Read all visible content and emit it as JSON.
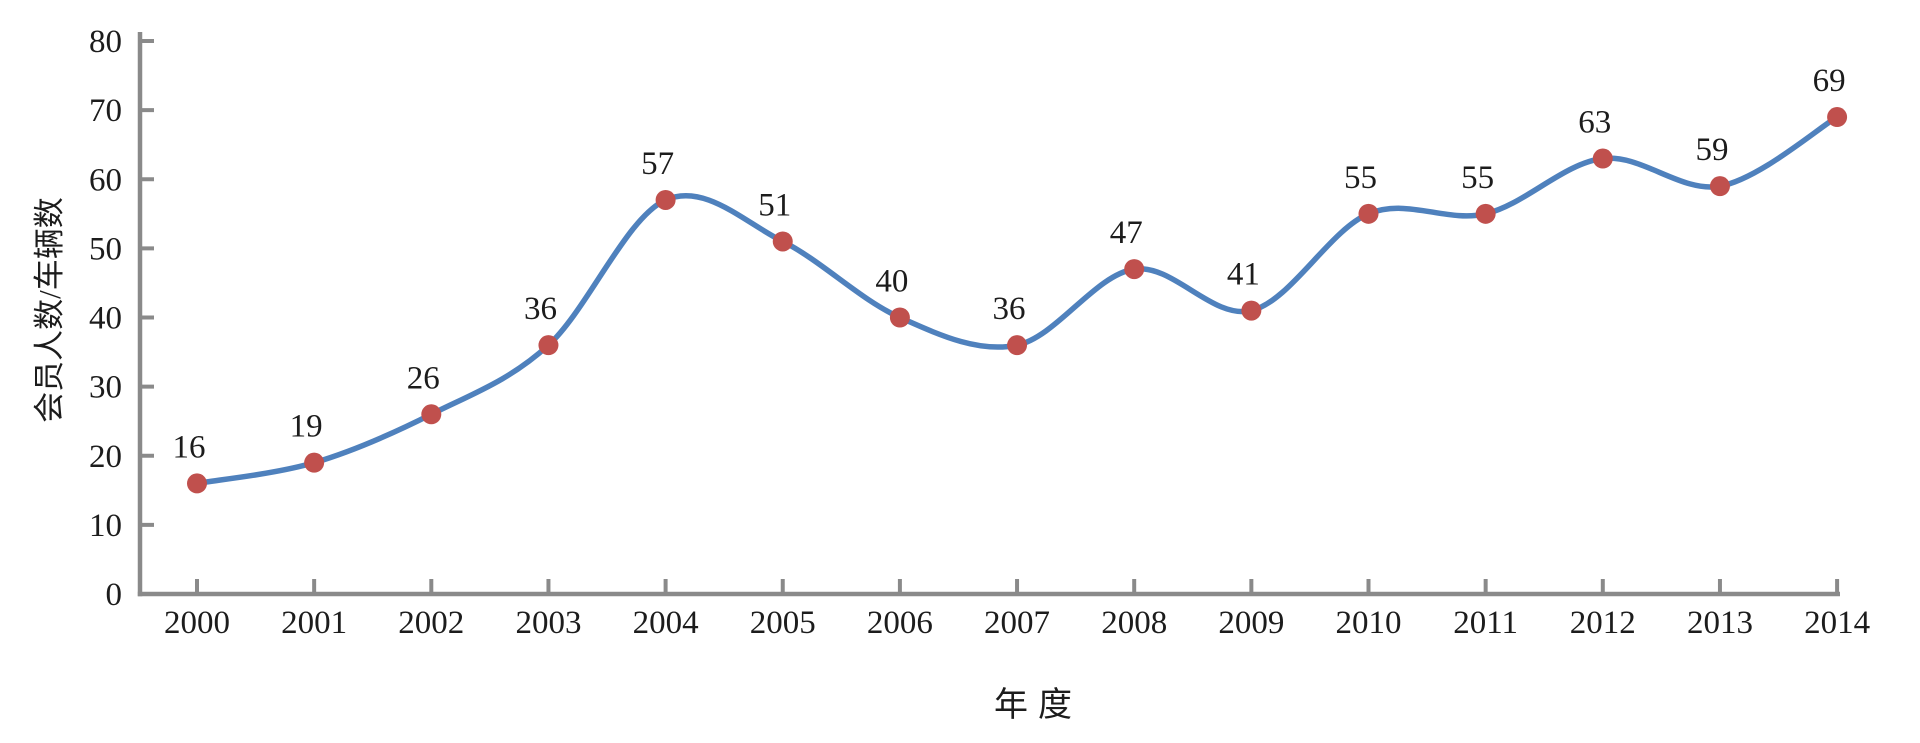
{
  "chart_data": {
    "type": "line",
    "title": "",
    "categories": [
      "2000",
      "2001",
      "2002",
      "2003",
      "2004",
      "2005",
      "2006",
      "2007",
      "2008",
      "2009",
      "2010",
      "2011",
      "2012",
      "2013",
      "2014"
    ],
    "series": [
      {
        "name": "会员人数/车辆数",
        "values": [
          16,
          19,
          26,
          36,
          57,
          51,
          40,
          36,
          47,
          41,
          55,
          55,
          63,
          59,
          69
        ]
      }
    ],
    "xlabel": "年度",
    "ylabel": "会员人数/车辆数",
    "ylim": [
      0,
      80
    ],
    "ytick_step": 10,
    "yticks": [
      0,
      10,
      20,
      30,
      40,
      50,
      60,
      70,
      80
    ],
    "grid": false,
    "legend": "none",
    "smooth": true,
    "show_data_labels": true,
    "colors": {
      "line": "#4f81bd",
      "marker": "#c0504d",
      "axis": "#8a8a8a",
      "text": "#1c1c1c"
    }
  }
}
